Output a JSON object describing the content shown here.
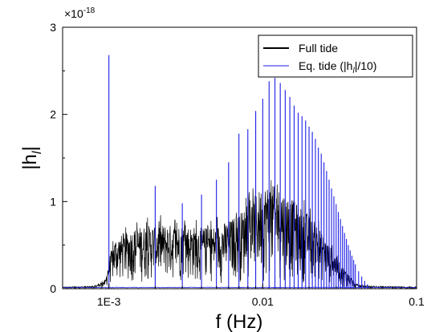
{
  "chart_data": {
    "type": "line",
    "xlabel": "f (Hz)",
    "ylabel": "|h_l|",
    "ylabel_main": "|h",
    "ylabel_sub": "l",
    "ylabel_end": "|",
    "x_scale": "log",
    "xlim": [
      0.0005,
      0.1
    ],
    "ylim": [
      0,
      3
    ],
    "y_multiplier": "×10",
    "y_multiplier_exp": "-18",
    "x_ticks": [
      {
        "value": 0.001,
        "label": "1E-3"
      },
      {
        "value": 0.01,
        "label": "0.01"
      },
      {
        "value": 0.1,
        "label": "0.1"
      }
    ],
    "y_ticks": [
      {
        "value": 0,
        "label": "0"
      },
      {
        "value": 1,
        "label": "1"
      },
      {
        "value": 2,
        "label": "2"
      },
      {
        "value": 3,
        "label": "3"
      }
    ],
    "grid": false,
    "legend_position": "top-right",
    "series": [
      {
        "name": "Full tide",
        "color": "#000000",
        "style": "dense-noise",
        "envelope": [
          [
            0.0005,
            0.02
          ],
          [
            0.0008,
            0.03
          ],
          [
            0.00095,
            0.1
          ],
          [
            0.001,
            0.35
          ],
          [
            0.0011,
            0.58
          ],
          [
            0.0015,
            0.7
          ],
          [
            0.002,
            0.74
          ],
          [
            0.003,
            0.73
          ],
          [
            0.004,
            0.7
          ],
          [
            0.005,
            0.72
          ],
          [
            0.006,
            0.78
          ],
          [
            0.007,
            0.86
          ],
          [
            0.008,
            0.95
          ],
          [
            0.009,
            1.08
          ],
          [
            0.01,
            1.18
          ],
          [
            0.011,
            1.2
          ],
          [
            0.013,
            1.15
          ],
          [
            0.015,
            1.05
          ],
          [
            0.018,
            0.92
          ],
          [
            0.02,
            0.85
          ],
          [
            0.023,
            0.72
          ],
          [
            0.026,
            0.55
          ],
          [
            0.03,
            0.38
          ],
          [
            0.035,
            0.2
          ],
          [
            0.04,
            0.06
          ],
          [
            0.05,
            0.03
          ],
          [
            0.1,
            0.02
          ]
        ]
      },
      {
        "name": "Eq. tide (|h_l|/10)",
        "legend_main": "Eq. tide (|h",
        "legend_sub": "l",
        "legend_end": "|/10)",
        "color": "#1e1ee6",
        "style": "spikes",
        "spikes": [
          [
            0.001,
            2.68
          ],
          [
            0.002,
            1.18
          ],
          [
            0.003,
            0.98
          ],
          [
            0.004,
            1.08
          ],
          [
            0.005,
            1.25
          ],
          [
            0.006,
            1.45
          ],
          [
            0.007,
            1.78
          ],
          [
            0.008,
            1.83
          ],
          [
            0.009,
            2.04
          ],
          [
            0.01,
            2.18
          ],
          [
            0.011,
            2.38
          ],
          [
            0.012,
            2.42
          ],
          [
            0.013,
            2.36
          ],
          [
            0.014,
            2.28
          ],
          [
            0.015,
            2.2
          ],
          [
            0.016,
            2.1
          ],
          [
            0.017,
            2.02
          ],
          [
            0.018,
            1.98
          ],
          [
            0.019,
            1.93
          ],
          [
            0.02,
            1.86
          ],
          [
            0.021,
            1.8
          ],
          [
            0.022,
            1.72
          ],
          [
            0.023,
            1.62
          ],
          [
            0.024,
            1.55
          ],
          [
            0.025,
            1.45
          ],
          [
            0.026,
            1.35
          ],
          [
            0.027,
            1.25
          ],
          [
            0.028,
            1.15
          ],
          [
            0.029,
            1.06
          ],
          [
            0.03,
            0.97
          ],
          [
            0.031,
            0.88
          ],
          [
            0.032,
            0.8
          ],
          [
            0.033,
            0.72
          ],
          [
            0.034,
            0.64
          ],
          [
            0.035,
            0.57
          ],
          [
            0.036,
            0.5
          ],
          [
            0.037,
            0.44
          ],
          [
            0.038,
            0.38
          ],
          [
            0.039,
            0.33
          ],
          [
            0.04,
            0.28
          ],
          [
            0.042,
            0.2
          ],
          [
            0.044,
            0.14
          ],
          [
            0.046,
            0.09
          ],
          [
            0.048,
            0.05
          ]
        ]
      }
    ]
  }
}
